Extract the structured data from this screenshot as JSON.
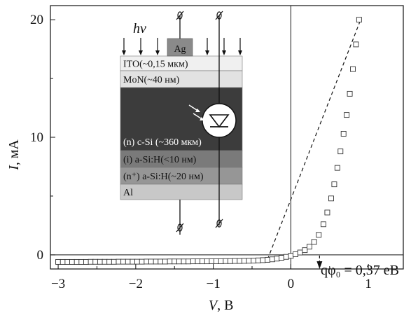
{
  "chart_data": {
    "type": "scatter",
    "xlabel_var": "V",
    "xlabel_unit": ", В",
    "ylabel_var": "I",
    "ylabel_unit": ", мА",
    "xlim": [
      -3.1,
      1.45
    ],
    "ylim": [
      -1.2,
      21.2
    ],
    "x_ticks": [
      -3,
      -2,
      -1,
      0,
      1
    ],
    "x_tick_labels": [
      "−3",
      "−2",
      "−1",
      "0",
      "1"
    ],
    "y_ticks": [
      0,
      10,
      20
    ],
    "y_tick_labels": [
      "0",
      "10",
      "20"
    ],
    "grid": false,
    "series": [
      {
        "marker": "open-square",
        "x": [
          -3.0,
          -2.94,
          -2.88,
          -2.82,
          -2.76,
          -2.7,
          -2.64,
          -2.58,
          -2.52,
          -2.46,
          -2.4,
          -2.34,
          -2.28,
          -2.22,
          -2.16,
          -2.1,
          -2.04,
          -1.98,
          -1.92,
          -1.86,
          -1.8,
          -1.74,
          -1.68,
          -1.62,
          -1.56,
          -1.5,
          -1.44,
          -1.38,
          -1.32,
          -1.26,
          -1.2,
          -1.14,
          -1.08,
          -1.02,
          -0.96,
          -0.9,
          -0.84,
          -0.78,
          -0.72,
          -0.66,
          -0.6,
          -0.54,
          -0.48,
          -0.42,
          -0.36,
          -0.3,
          -0.24,
          -0.18,
          -0.12,
          -0.06,
          0.0,
          0.06,
          0.12,
          0.18,
          0.24,
          0.3,
          0.36,
          0.42,
          0.47,
          0.52,
          0.56,
          0.6,
          0.64,
          0.68,
          0.72,
          0.76,
          0.8,
          0.84,
          0.88
        ],
        "y": [
          -0.6,
          -0.6,
          -0.6,
          -0.6,
          -0.6,
          -0.6,
          -0.6,
          -0.59,
          -0.59,
          -0.59,
          -0.59,
          -0.59,
          -0.59,
          -0.58,
          -0.58,
          -0.58,
          -0.58,
          -0.58,
          -0.58,
          -0.57,
          -0.57,
          -0.57,
          -0.57,
          -0.57,
          -0.56,
          -0.56,
          -0.56,
          -0.56,
          -0.56,
          -0.55,
          -0.55,
          -0.55,
          -0.55,
          -0.54,
          -0.54,
          -0.54,
          -0.53,
          -0.53,
          -0.52,
          -0.52,
          -0.51,
          -0.5,
          -0.49,
          -0.47,
          -0.45,
          -0.42,
          -0.38,
          -0.32,
          -0.25,
          -0.17,
          -0.08,
          0.05,
          0.2,
          0.4,
          0.7,
          1.1,
          1.7,
          2.6,
          3.6,
          4.8,
          6.0,
          7.4,
          8.8,
          10.3,
          11.9,
          13.7,
          15.8,
          17.9,
          20.0
        ]
      }
    ],
    "fit_line": {
      "x": [
        -0.3,
        0.9
      ],
      "y": [
        -0.38,
        20.0
      ]
    },
    "arrow_target_x": 0.37,
    "annotation_label": "qφ₀ = 0,37 eB",
    "inset": {
      "photon_label": "hν",
      "contact_label": "Ag",
      "layers": [
        {
          "label": "ITO(~0,15 мкм)",
          "color": "#f0f0f0"
        },
        {
          "label": "MoN(~40 нм)",
          "color": "#e2e2e2"
        },
        {
          "label": "(n) c-Si (~360 мкм)",
          "color": "#3c3c3c"
        },
        {
          "label": "(i) a-Si:H(<10 нм)",
          "color": "#7a7a7a"
        },
        {
          "label": "(n⁺) a-Si:H(~20 нм)",
          "color": "#969696"
        },
        {
          "label": "Al",
          "color": "#c8c8c8"
        }
      ]
    }
  }
}
